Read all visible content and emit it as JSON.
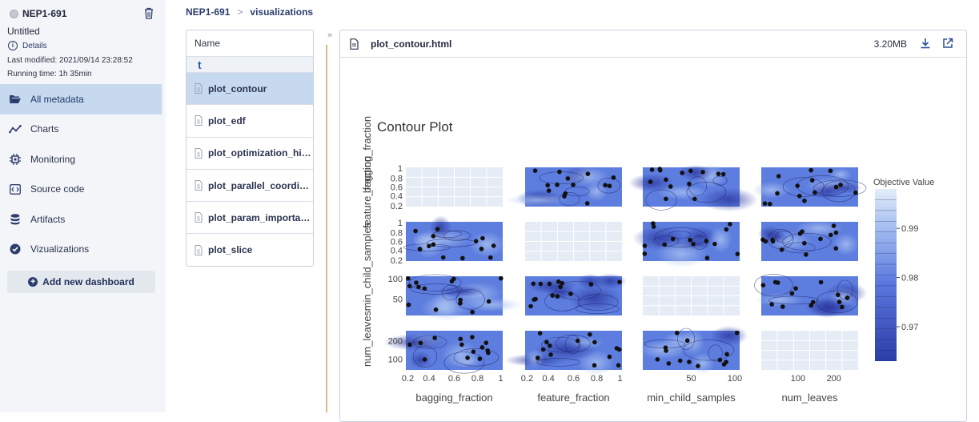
{
  "sidebar": {
    "run_id": "NEP1-691",
    "run_name": "Untitled",
    "details_label": "Details",
    "last_modified": "Last modified: 2021/09/14 23:28:52",
    "running_time": "Running time: 1h 35min",
    "nav": [
      {
        "label": "All metadata",
        "icon": "folder-open-icon",
        "active": true
      },
      {
        "label": "Charts",
        "icon": "line-chart-icon",
        "active": false
      },
      {
        "label": "Monitoring",
        "icon": "chip-icon",
        "active": false
      },
      {
        "label": "Source code",
        "icon": "code-icon",
        "active": false
      },
      {
        "label": "Artifacts",
        "icon": "database-icon",
        "active": false
      },
      {
        "label": "Vizualizations",
        "icon": "check-circle-icon",
        "active": false
      }
    ],
    "add_dashboard_label": "Add new dashboard"
  },
  "breadcrumb": {
    "run": "NEP1-691",
    "separator": ">",
    "section": "visualizations"
  },
  "filelist": {
    "header": "Name",
    "sort_glyph": "t",
    "files": [
      {
        "name": "plot_contour",
        "active": true
      },
      {
        "name": "plot_edf",
        "active": false
      },
      {
        "name": "plot_optimization_history",
        "active": false
      },
      {
        "name": "plot_parallel_coordinate",
        "active": false
      },
      {
        "name": "plot_param_importances",
        "active": false
      },
      {
        "name": "plot_slice",
        "active": false
      }
    ]
  },
  "collapse_glyph": "»",
  "preview": {
    "filename": "plot_contour.html",
    "size": "3.20MB"
  },
  "colors": {
    "accent": "#2c3d6d",
    "active_bg": "#c7d9ee",
    "contour_dark": "#2f3fb0",
    "contour_mid": "#5f7ee0",
    "contour_light": "#dbe9f7"
  },
  "chart_data": {
    "type": "contour",
    "title": "Contour Plot",
    "params": [
      "bagging_fraction",
      "feature_fraction",
      "min_child_samples",
      "num_leaves"
    ],
    "xlabels": [
      "bagging_fraction",
      "feature_fraction",
      "min_child_samples",
      "num_leaves"
    ],
    "ylabels": [
      "bagging_fraction",
      "feature_fraction",
      "min_child_samples",
      "num_leaves"
    ],
    "x_ticks": [
      [
        "0.2",
        "0.4",
        "0.6",
        "0.8",
        "1"
      ],
      [
        "0.2",
        "0.4",
        "0.6",
        "0.8",
        "1"
      ],
      [
        "50",
        "100"
      ],
      [
        "100",
        "200"
      ]
    ],
    "y_ticks": [
      [
        "1",
        "0.8",
        "0.6",
        "0.4",
        "0.2"
      ],
      [
        "1",
        "0.8",
        "0.6",
        "0.4",
        "0.2"
      ],
      [
        "100",
        "50"
      ],
      [
        "200",
        "100"
      ]
    ],
    "colorbar": {
      "title": "Objective Value",
      "ticks": [
        "0.99",
        "0.98",
        "0.97"
      ],
      "range": [
        0.963,
        0.998
      ]
    }
  }
}
